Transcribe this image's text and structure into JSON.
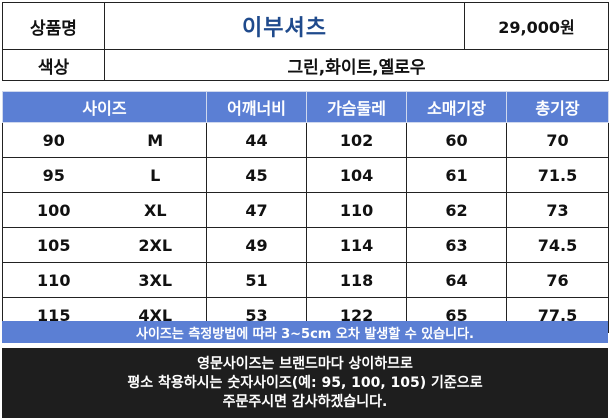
{
  "product": {
    "name_label": "상품명",
    "name": "이부셔츠",
    "price": "29,000원",
    "color_label": "색상",
    "colors": "그린,화이트,옐로우"
  },
  "size_table": {
    "headers": [
      "사이즈",
      "어깨너비",
      "가슴둘레",
      "소매기장",
      "총기장"
    ],
    "rows": [
      {
        "num": "90",
        "letter": "M",
        "shoulder": "44",
        "chest": "102",
        "sleeve": "60",
        "length": "70"
      },
      {
        "num": "95",
        "letter": "L",
        "shoulder": "45",
        "chest": "104",
        "sleeve": "61",
        "length": "71.5"
      },
      {
        "num": "100",
        "letter": "XL",
        "shoulder": "47",
        "chest": "110",
        "sleeve": "62",
        "length": "73"
      },
      {
        "num": "105",
        "letter": "2XL",
        "shoulder": "49",
        "chest": "114",
        "sleeve": "63",
        "length": "74.5"
      },
      {
        "num": "110",
        "letter": "3XL",
        "shoulder": "51",
        "chest": "118",
        "sleeve": "64",
        "length": "76"
      },
      {
        "num": "115",
        "letter": "4XL",
        "shoulder": "53",
        "chest": "122",
        "sleeve": "65",
        "length": "77.5"
      }
    ]
  },
  "note": "사이즈는 측정방법에 따라 3~5cm 오차 발생할 수 있습니다.",
  "notice": [
    "영문사이즈는 브랜드마다 상이하므로",
    "평소 착용하시는 숫자사이즈(예: 95, 100, 105) 기준으로",
    "주문주시면 감사하겠습니다."
  ],
  "colors_theme": {
    "header_blue": "#5b7fd4",
    "title_blue": "#1f4a8c",
    "notice_bg": "#1e1e1e"
  }
}
